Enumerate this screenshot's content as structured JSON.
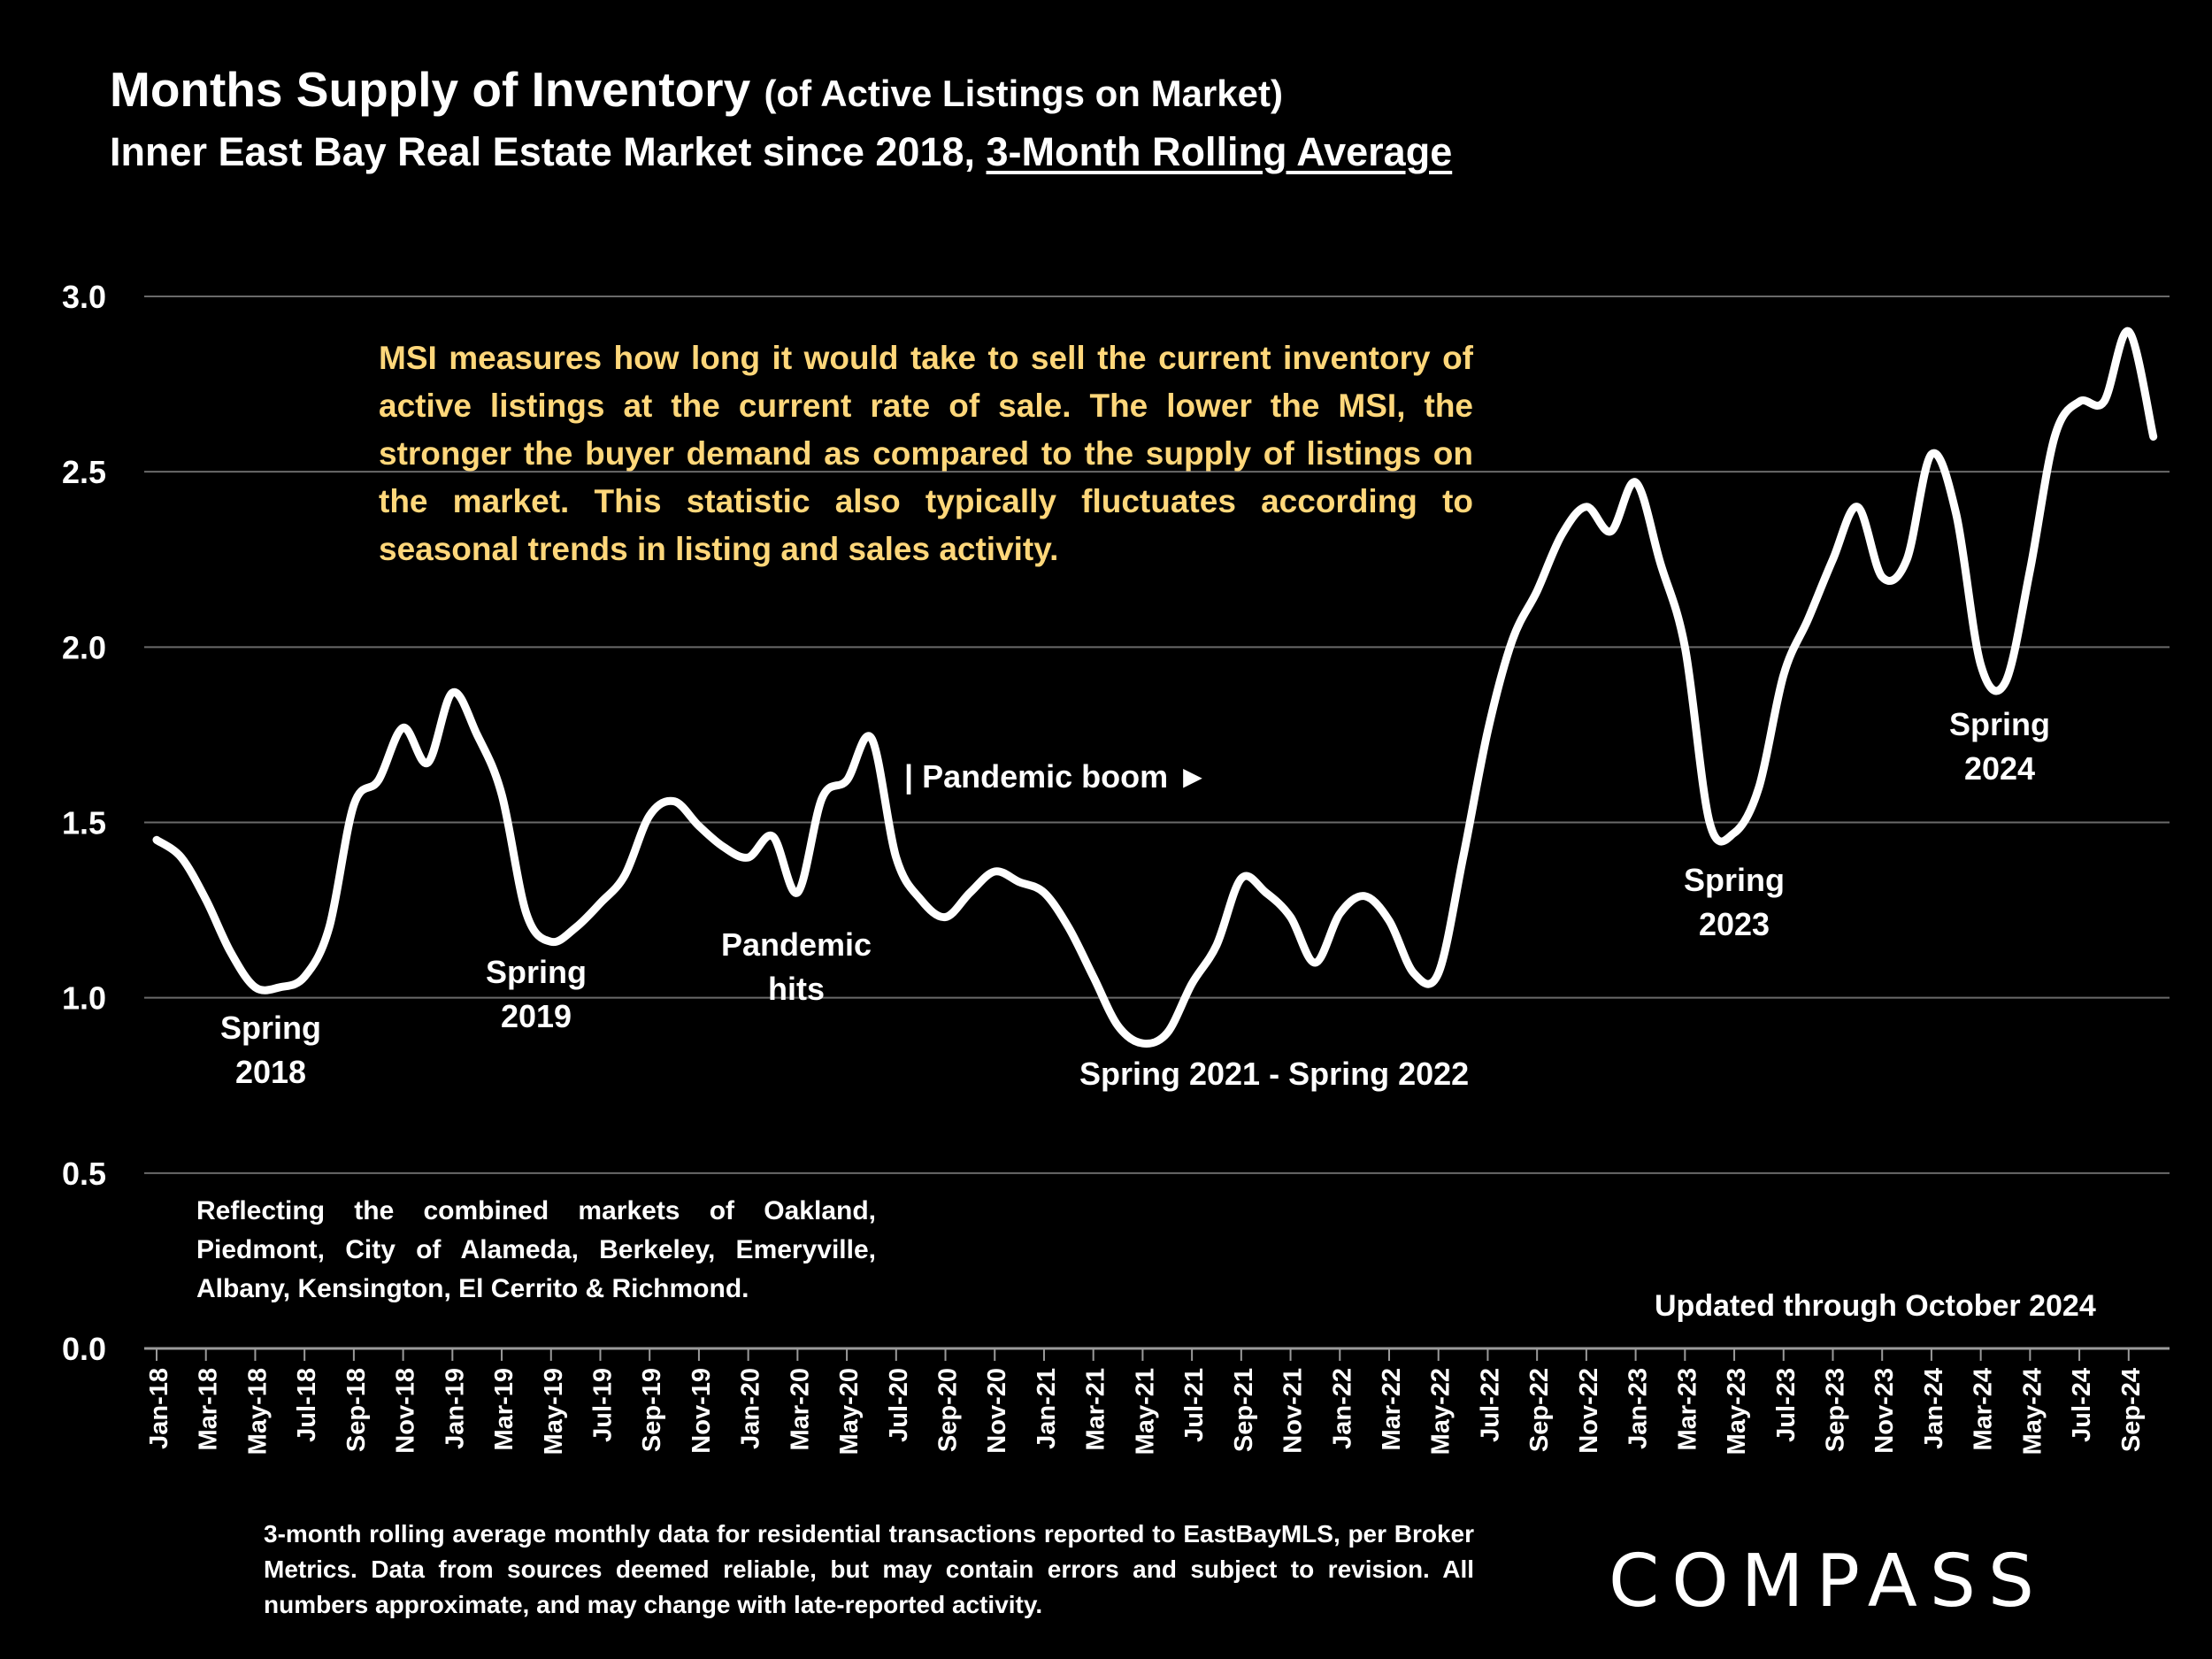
{
  "header": {
    "title_main": "Months Supply of Inventory",
    "title_paren": "(of Active Listings on Market)",
    "subtitle_main": "Inner East Bay Real Estate Market since 2018,",
    "subtitle_underlined": "3-Month Rolling Average"
  },
  "notes": {
    "msi_explanation": "MSI measures how long it would take to sell the current inventory of active listings at the current rate of sale. The lower the MSI, the stronger the buyer demand as compared to the supply of listings on the market. This statistic also typically fluctuates according to seasonal trends in listing and sales activity.",
    "reflecting": "Reflecting the combined markets of Oakland, Piedmont, City of Alameda, Berkeley, Emeryville, Albany, Kensington, El Cerrito & Richmond.",
    "updated": "Updated through October 2024",
    "footnote": "3-month rolling average monthly data for residential transactions reported to EastBayMLS, per Broker Metrics. Data from sources deemed reliable, but may contain errors and subject to revision. All numbers approximate, and may change with late-reported activity.",
    "logo": "COMPASS"
  },
  "annotations": {
    "spring2018": [
      "Spring",
      "2018"
    ],
    "spring2019": [
      "Spring",
      "2019"
    ],
    "pandemic_hits": [
      "Pandemic",
      "hits"
    ],
    "pandemic_boom": "| Pandemic boom ►",
    "spring2021_2022": "Spring 2021 - Spring 2022",
    "spring2023": [
      "Spring",
      "2023"
    ],
    "spring2024": [
      "Spring",
      "2024"
    ]
  },
  "chart_data": {
    "type": "line",
    "ylim": [
      0,
      3.0
    ],
    "yticks": [
      "0.0",
      "0.5",
      "1.0",
      "1.5",
      "2.0",
      "2.5",
      "3.0"
    ],
    "grid": true,
    "line_color": "#ffffff",
    "tick_labels": [
      "Jan-18",
      "Mar-18",
      "May-18",
      "Jul-18",
      "Sep-18",
      "Nov-18",
      "Jan-19",
      "Mar-19",
      "May-19",
      "Jul-19",
      "Sep-19",
      "Nov-19",
      "Jan-20",
      "Mar-20",
      "May-20",
      "Jul-20",
      "Sep-20",
      "Nov-20",
      "Jan-21",
      "Mar-21",
      "May-21",
      "Jul-21",
      "Sep-21",
      "Nov-21",
      "Jan-22",
      "Mar-22",
      "May-22",
      "Jul-22",
      "Sep-22",
      "Nov-22",
      "Jan-23",
      "Mar-23",
      "May-23",
      "Jul-23",
      "Sep-23",
      "Nov-23",
      "Jan-24",
      "Mar-24",
      "May-24",
      "Jul-24",
      "Sep-24"
    ],
    "x": [
      "Jan-18",
      "Feb-18",
      "Mar-18",
      "Apr-18",
      "May-18",
      "Jun-18",
      "Jul-18",
      "Aug-18",
      "Sep-18",
      "Oct-18",
      "Nov-18",
      "Dec-18",
      "Jan-19",
      "Feb-19",
      "Mar-19",
      "Apr-19",
      "May-19",
      "Jun-19",
      "Jul-19",
      "Aug-19",
      "Sep-19",
      "Oct-19",
      "Nov-19",
      "Dec-19",
      "Jan-20",
      "Feb-20",
      "Mar-20",
      "Apr-20",
      "May-20",
      "Jun-20",
      "Jul-20",
      "Aug-20",
      "Sep-20",
      "Oct-20",
      "Nov-20",
      "Dec-20",
      "Jan-21",
      "Feb-21",
      "Mar-21",
      "Apr-21",
      "May-21",
      "Jun-21",
      "Jul-21",
      "Aug-21",
      "Sep-21",
      "Oct-21",
      "Nov-21",
      "Dec-21",
      "Jan-22",
      "Feb-22",
      "Mar-22",
      "Apr-22",
      "May-22",
      "Jun-22",
      "Jul-22",
      "Aug-22",
      "Sep-22",
      "Oct-22",
      "Nov-22",
      "Dec-22",
      "Jan-23",
      "Feb-23",
      "Mar-23",
      "Apr-23",
      "May-23",
      "Jun-23",
      "Jul-23",
      "Aug-23",
      "Sep-23",
      "Oct-23",
      "Nov-23",
      "Dec-23",
      "Jan-24",
      "Feb-24",
      "Mar-24",
      "Apr-24",
      "May-24",
      "Jun-24",
      "Jul-24",
      "Aug-24",
      "Sep-24",
      "Oct-24"
    ],
    "values": [
      1.45,
      1.4,
      1.28,
      1.13,
      1.03,
      1.03,
      1.06,
      1.2,
      1.55,
      1.62,
      1.77,
      1.67,
      1.87,
      1.75,
      1.58,
      1.24,
      1.16,
      1.2,
      1.27,
      1.35,
      1.52,
      1.56,
      1.49,
      1.43,
      1.4,
      1.46,
      1.3,
      1.57,
      1.62,
      1.74,
      1.4,
      1.28,
      1.23,
      1.3,
      1.36,
      1.33,
      1.3,
      1.2,
      1.06,
      0.92,
      0.87,
      0.9,
      1.04,
      1.15,
      1.34,
      1.3,
      1.23,
      1.1,
      1.24,
      1.29,
      1.22,
      1.07,
      1.07,
      1.4,
      1.76,
      2.02,
      2.16,
      2.32,
      2.4,
      2.33,
      2.47,
      2.24,
      2.0,
      1.5,
      1.47,
      1.6,
      1.92,
      2.08,
      2.25,
      2.4,
      2.2,
      2.25,
      2.55,
      2.38,
      1.95,
      1.9,
      2.22,
      2.6,
      2.7,
      2.7,
      2.9,
      2.6
    ]
  }
}
